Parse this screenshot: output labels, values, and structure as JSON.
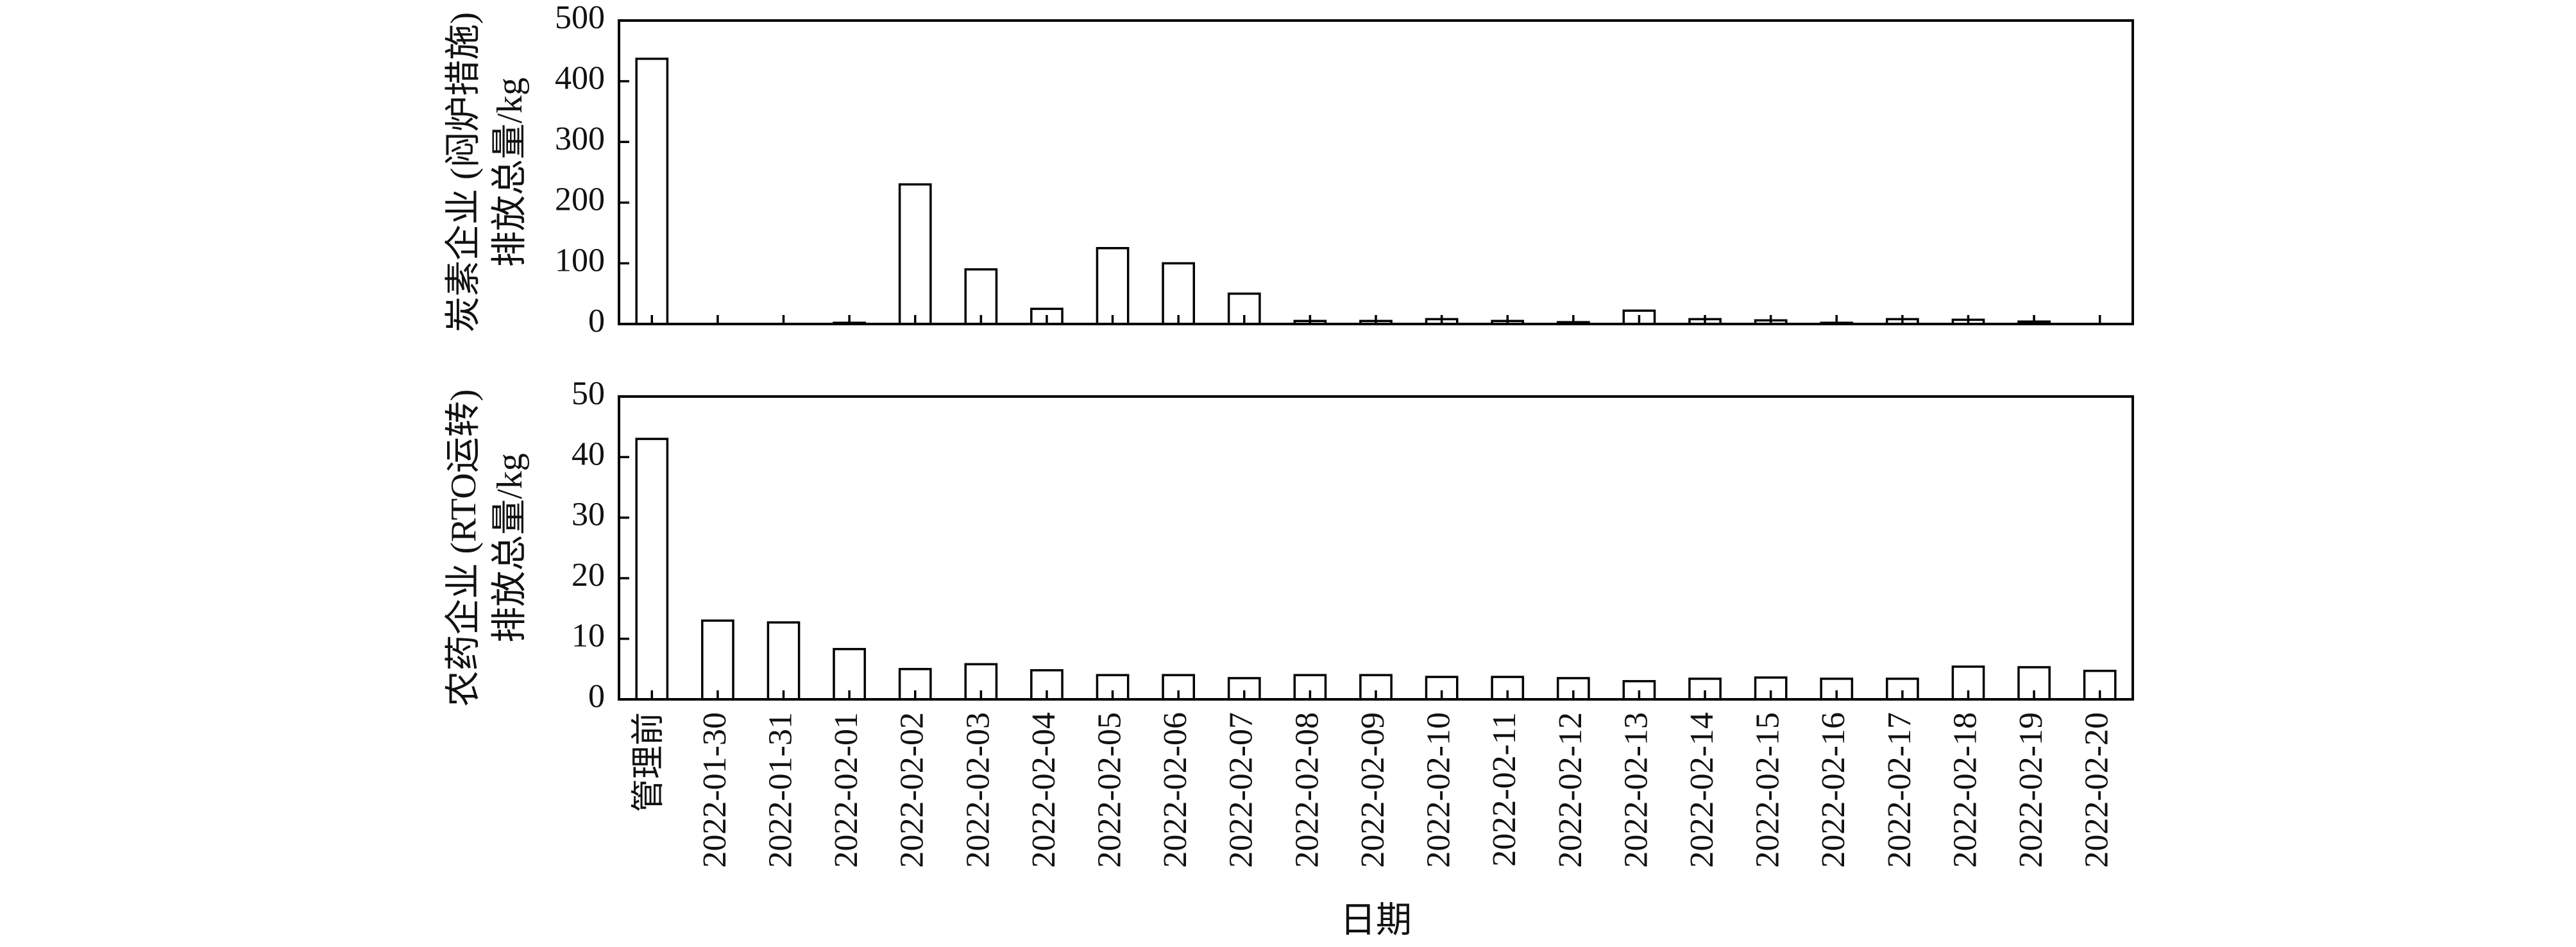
{
  "chart_data": [
    {
      "type": "bar",
      "ylabel": "炭素企业 (闷炉措施) 排放总量/kg",
      "ylabel_lines": [
        "炭素企业 (闷炉措施)",
        "排放总量/kg"
      ],
      "ylim": [
        0,
        500
      ],
      "yticks": [
        0,
        100,
        200,
        300,
        400,
        500
      ],
      "categories": [
        "管理前",
        "2022-01-30",
        "2022-01-31",
        "2022-02-01",
        "2022-02-02",
        "2022-02-03",
        "2022-02-04",
        "2022-02-05",
        "2022-02-06",
        "2022-02-07",
        "2022-02-08",
        "2022-02-09",
        "2022-02-10",
        "2022-02-11",
        "2022-02-12",
        "2022-02-13",
        "2022-02-14",
        "2022-02-15",
        "2022-02-16",
        "2022-02-17",
        "2022-02-18",
        "2022-02-19",
        "2022-02-20"
      ],
      "values": [
        437,
        0,
        0,
        2,
        230,
        90,
        25,
        125,
        100,
        50,
        5,
        5,
        8,
        5,
        3,
        22,
        8,
        6,
        2,
        8,
        7,
        4,
        0
      ],
      "grid": false,
      "bar_fill": "#ffffff",
      "bar_stroke": "#000000"
    },
    {
      "type": "bar",
      "ylabel": "农药企业 (RTO运转) 排放总量/kg",
      "ylabel_lines": [
        "农药企业 (RTO运转)",
        "排放总量/kg"
      ],
      "ylim": [
        0,
        50
      ],
      "yticks": [
        0,
        10,
        20,
        30,
        40,
        50
      ],
      "xlabel": "日期",
      "categories": [
        "管理前",
        "2022-01-30",
        "2022-01-31",
        "2022-02-01",
        "2022-02-02",
        "2022-02-03",
        "2022-02-04",
        "2022-02-05",
        "2022-02-06",
        "2022-02-07",
        "2022-02-08",
        "2022-02-09",
        "2022-02-10",
        "2022-02-11",
        "2022-02-12",
        "2022-02-13",
        "2022-02-14",
        "2022-02-15",
        "2022-02-16",
        "2022-02-17",
        "2022-02-18",
        "2022-02-19",
        "2022-02-20"
      ],
      "values": [
        43,
        13,
        12.7,
        8.3,
        5,
        5.8,
        4.8,
        4,
        4,
        3.5,
        4,
        4,
        3.7,
        3.7,
        3.5,
        3,
        3.4,
        3.6,
        3.4,
        3.4,
        5.4,
        5.3,
        4.7
      ],
      "grid": false,
      "bar_fill": "#ffffff",
      "bar_stroke": "#000000"
    }
  ]
}
